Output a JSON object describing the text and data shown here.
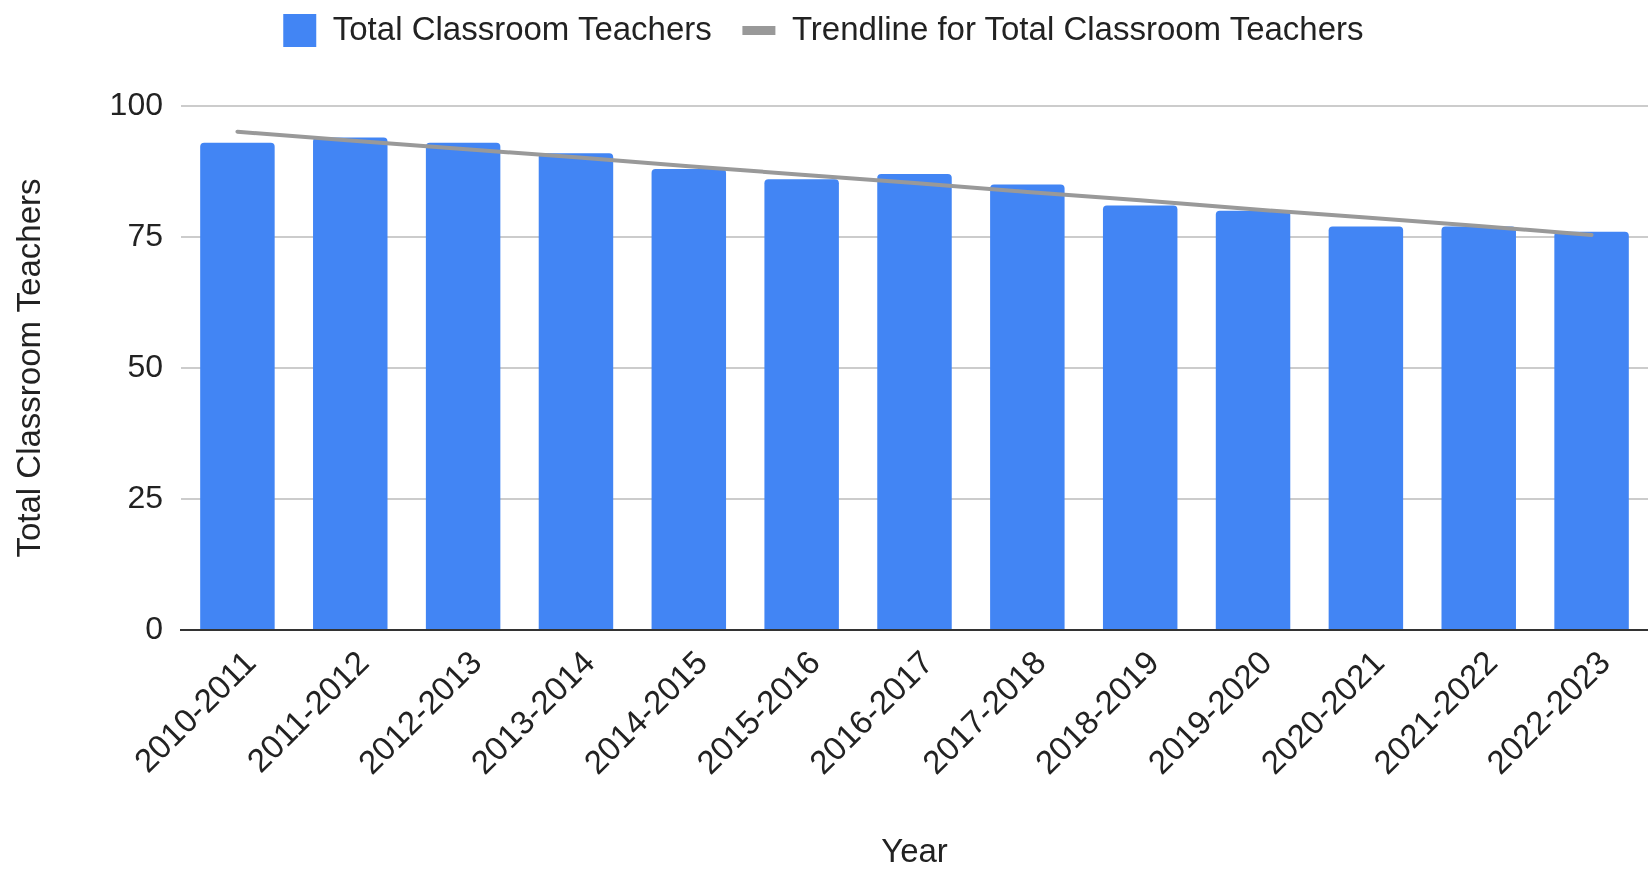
{
  "chart_data": {
    "type": "bar",
    "categories": [
      "2010-2011",
      "2011-2012",
      "2012-2013",
      "2013-2014",
      "2014-2015",
      "2015-2016",
      "2016-2017",
      "2017-2018",
      "2018-2019",
      "2019-2020",
      "2020-2021",
      "2021-2022",
      "2022-2023"
    ],
    "xlabel": "Year",
    "ylabel": "Total Classroom Teachers",
    "series": [
      {
        "name": "Total Classroom Teachers",
        "color": "#4285f4",
        "values": [
          93,
          94,
          93,
          91,
          88,
          86,
          87,
          85,
          81,
          80,
          77,
          77,
          76
        ]
      },
      {
        "name": "Trendline for Total Classroom Teachers",
        "type": "line",
        "color": "#999999",
        "values": [
          95.1,
          93.4,
          91.8,
          90.2,
          88.5,
          86.9,
          85.3,
          83.6,
          82.0,
          80.3,
          78.7,
          77.1,
          75.4
        ]
      }
    ],
    "ylim": [
      0,
      100
    ],
    "yticks": [
      0,
      25,
      50,
      75,
      100
    ],
    "grid": "y",
    "legend": "top",
    "marker": "none"
  }
}
